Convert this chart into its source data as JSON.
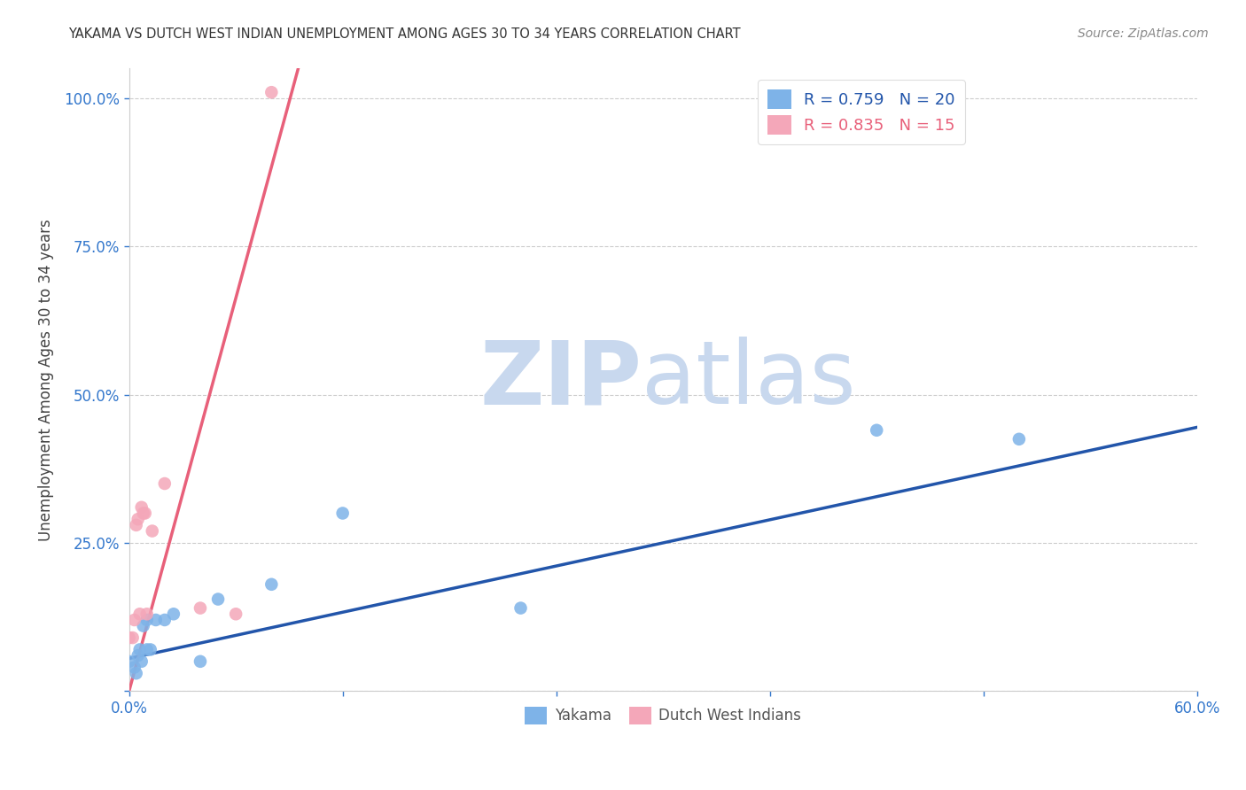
{
  "title": "YAKAMA VS DUTCH WEST INDIAN UNEMPLOYMENT AMONG AGES 30 TO 34 YEARS CORRELATION CHART",
  "source": "Source: ZipAtlas.com",
  "ylabel_label": "Unemployment Among Ages 30 to 34 years",
  "xlim": [
    0.0,
    0.6
  ],
  "ylim": [
    0.0,
    1.05
  ],
  "x_ticks": [
    0.0,
    0.12,
    0.24,
    0.36,
    0.48,
    0.6
  ],
  "x_tick_labels": [
    "0.0%",
    "",
    "",
    "",
    "",
    "60.0%"
  ],
  "y_ticks": [
    0.0,
    0.25,
    0.5,
    0.75,
    1.0
  ],
  "y_tick_labels": [
    "",
    "25.0%",
    "50.0%",
    "75.0%",
    "100.0%"
  ],
  "yakama_color": "#7EB3E8",
  "dutch_color": "#F4A7B9",
  "trendline_blue": "#2255AA",
  "trendline_pink": "#E8607A",
  "watermark_zip": "ZIP",
  "watermark_atlas": "atlas",
  "watermark_color": "#C8D8EE",
  "legend_label_blue": "R = 0.759   N = 20",
  "legend_label_pink": "R = 0.835   N = 15",
  "legend_color_blue": "#2255AA",
  "legend_color_pink": "#E8607A",
  "yakama_x": [
    0.0,
    0.003,
    0.004,
    0.005,
    0.006,
    0.007,
    0.008,
    0.01,
    0.01,
    0.012,
    0.015,
    0.02,
    0.025,
    0.04,
    0.05,
    0.08,
    0.12,
    0.22,
    0.42,
    0.5
  ],
  "yakama_y": [
    0.05,
    0.04,
    0.03,
    0.06,
    0.07,
    0.05,
    0.11,
    0.07,
    0.12,
    0.07,
    0.12,
    0.12,
    0.13,
    0.05,
    0.155,
    0.18,
    0.3,
    0.14,
    0.44,
    0.425
  ],
  "dutch_x": [
    0.0,
    0.002,
    0.003,
    0.004,
    0.005,
    0.006,
    0.007,
    0.008,
    0.009,
    0.01,
    0.013,
    0.02,
    0.04,
    0.06,
    0.08
  ],
  "dutch_y": [
    0.09,
    0.09,
    0.12,
    0.28,
    0.29,
    0.13,
    0.31,
    0.3,
    0.3,
    0.13,
    0.27,
    0.35,
    0.14,
    0.13,
    1.01
  ],
  "blue_trendline_x0": 0.0,
  "blue_trendline_x1": 0.6,
  "blue_trendline_y0": 0.055,
  "blue_trendline_y1": 0.445,
  "pink_trendline_x0": 0.0,
  "pink_trendline_x1": 0.095,
  "pink_trendline_y0": 0.0,
  "pink_trendline_y1": 1.05
}
